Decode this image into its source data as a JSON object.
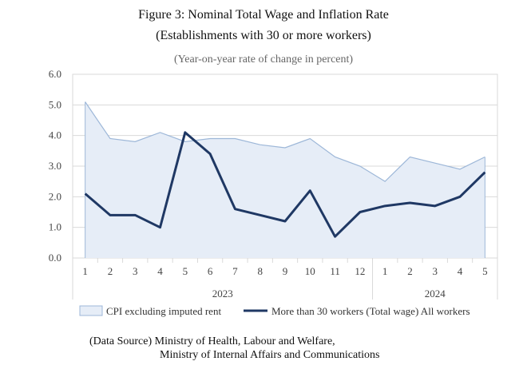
{
  "title": "Figure 3: Nominal Total Wage and Inflation Rate",
  "subtitle": "(Establishments with 30 or more workers)",
  "unit_note": "(Year-on-year rate of change in percent)",
  "source_line1": "(Data Source) Ministry of Health, Labour and Welfare,",
  "source_line2": "Ministry of Internal Affairs and Communications",
  "colors": {
    "cpi_fill": "#e6edf7",
    "cpi_line": "#9db7d8",
    "wage_line": "#1f3864",
    "grid": "#d9d9d9"
  },
  "chart_data": {
    "type": "line",
    "title": "Figure 3: Nominal Total Wage and Inflation Rate",
    "subtitle": "(Establishments with 30 or more workers)",
    "ylabel": "(Year-on-year rate of change in percent)",
    "ylim": [
      0,
      6
    ],
    "yticks": [
      "0.0",
      "1.0",
      "2.0",
      "3.0",
      "4.0",
      "5.0",
      "6.0"
    ],
    "categories": [
      "1",
      "2",
      "3",
      "4",
      "5",
      "6",
      "7",
      "8",
      "9",
      "10",
      "11",
      "12",
      "1",
      "2",
      "3",
      "4",
      "5"
    ],
    "year_groups": [
      {
        "label": "2023",
        "count": 12
      },
      {
        "label": "2024",
        "count": 5
      }
    ],
    "grid": true,
    "legend_position": "bottom",
    "series": [
      {
        "name": "CPI excluding imputed rent",
        "style": "area",
        "values": [
          5.1,
          3.9,
          3.8,
          4.1,
          3.8,
          3.9,
          3.9,
          3.7,
          3.6,
          3.9,
          3.3,
          3.0,
          2.5,
          3.3,
          3.1,
          2.9,
          3.3
        ]
      },
      {
        "name": "More than 30 workers (Total wage) All workers",
        "style": "line",
        "values": [
          2.1,
          1.4,
          1.4,
          1.0,
          4.1,
          3.4,
          1.6,
          1.4,
          1.2,
          2.2,
          0.7,
          1.5,
          1.7,
          1.8,
          1.7,
          2.0,
          2.8
        ]
      }
    ]
  }
}
